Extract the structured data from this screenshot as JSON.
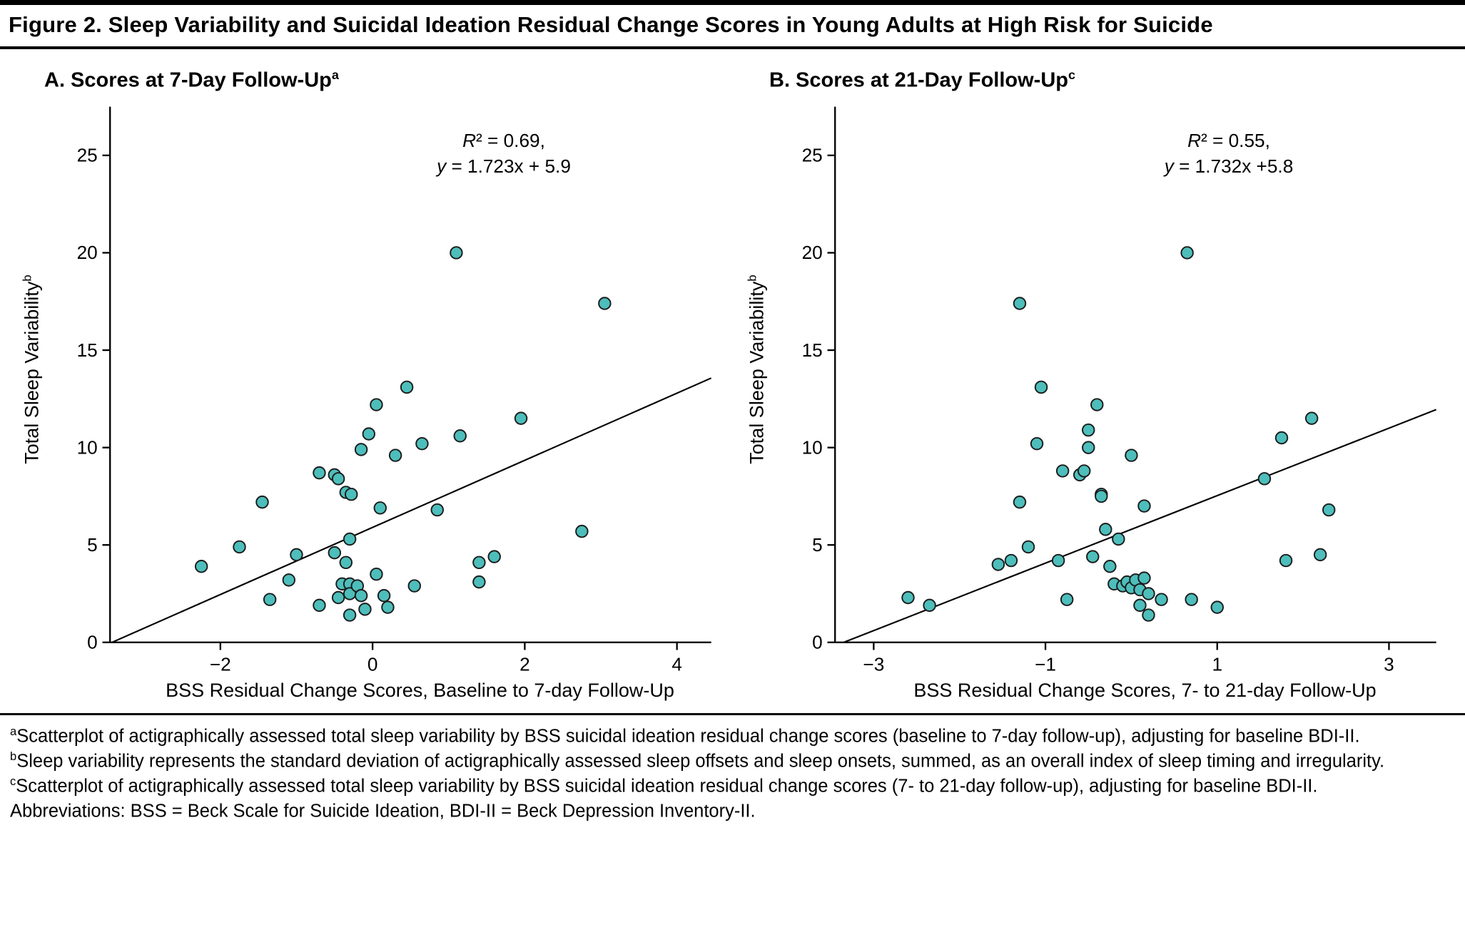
{
  "figure": {
    "title": "Figure 2. Sleep Variability and Suicidal Ideation Residual Change Scores in Young Adults at High Risk for Suicide"
  },
  "chart_data": [
    {
      "type": "scatter",
      "title": "A. Scores at 7-Day Follow-Up",
      "title_sup": "a",
      "xlabel": "BSS Residual Change Scores, Baseline to 7-day Follow-Up",
      "ylabel": "Total Sleep Variability",
      "ylabel_sup": "b",
      "xlim": [
        -3.45,
        4.45
      ],
      "ylim": [
        0,
        27.5
      ],
      "xticks": [
        -2,
        0,
        2,
        4
      ],
      "yticks": [
        0,
        5,
        10,
        15,
        20,
        25
      ],
      "grid": false,
      "legend": "none",
      "annotation_lines": [
        "R² = 0.69,",
        "y = 1.723x + 5.9"
      ],
      "regression": {
        "slope": 1.723,
        "intercept": 5.9
      },
      "point_color": "#4DBEBB",
      "point_stroke": "#1c1c1c",
      "line_color": "#000000",
      "points": [
        [
          -2.25,
          3.9
        ],
        [
          -1.75,
          4.9
        ],
        [
          -1.45,
          7.2
        ],
        [
          -1.35,
          2.2
        ],
        [
          -1.1,
          3.2
        ],
        [
          -1.0,
          4.5
        ],
        [
          -0.7,
          8.7
        ],
        [
          -0.7,
          1.9
        ],
        [
          -0.5,
          8.6
        ],
        [
          -0.45,
          8.4
        ],
        [
          -0.5,
          4.6
        ],
        [
          -0.45,
          2.3
        ],
        [
          -0.4,
          3.0
        ],
        [
          -0.35,
          7.7
        ],
        [
          -0.28,
          7.6
        ],
        [
          -0.3,
          5.3
        ],
        [
          -0.35,
          4.1
        ],
        [
          -0.3,
          3.0
        ],
        [
          -0.3,
          2.5
        ],
        [
          -0.3,
          1.4
        ],
        [
          -0.2,
          2.9
        ],
        [
          -0.15,
          2.4
        ],
        [
          -0.15,
          9.9
        ],
        [
          -0.1,
          1.7
        ],
        [
          -0.05,
          10.7
        ],
        [
          0.05,
          12.2
        ],
        [
          0.1,
          6.9
        ],
        [
          0.05,
          3.5
        ],
        [
          0.15,
          2.4
        ],
        [
          0.2,
          1.8
        ],
        [
          0.3,
          9.6
        ],
        [
          0.45,
          13.1
        ],
        [
          0.55,
          2.9
        ],
        [
          0.65,
          10.2
        ],
        [
          0.85,
          6.8
        ],
        [
          1.1,
          20.0
        ],
        [
          1.15,
          10.6
        ],
        [
          1.4,
          4.1
        ],
        [
          1.4,
          3.1
        ],
        [
          1.6,
          4.4
        ],
        [
          1.95,
          11.5
        ],
        [
          2.75,
          5.7
        ],
        [
          3.05,
          17.4
        ]
      ]
    },
    {
      "type": "scatter",
      "title": "B. Scores at 21-Day Follow-Up",
      "title_sup": "c",
      "xlabel": "BSS Residual Change Scores, 7- to 21-day Follow-Up",
      "ylabel": "Total Sleep Variability",
      "ylabel_sup": "b",
      "xlim": [
        -3.45,
        3.55
      ],
      "ylim": [
        0,
        27.5
      ],
      "xticks": [
        -3,
        -1,
        1,
        3
      ],
      "yticks": [
        0,
        5,
        10,
        15,
        20,
        25
      ],
      "grid": false,
      "legend": "none",
      "annotation_lines": [
        "R² = 0.55,",
        "y = 1.732x +5.8"
      ],
      "regression": {
        "slope": 1.732,
        "intercept": 5.8
      },
      "point_color": "#4DBEBB",
      "point_stroke": "#1c1c1c",
      "line_color": "#000000",
      "points": [
        [
          -2.6,
          2.3
        ],
        [
          -2.35,
          1.9
        ],
        [
          -1.55,
          4.0
        ],
        [
          -1.4,
          4.2
        ],
        [
          -1.3,
          17.4
        ],
        [
          -1.3,
          7.2
        ],
        [
          -1.2,
          4.9
        ],
        [
          -1.05,
          13.1
        ],
        [
          -1.1,
          10.2
        ],
        [
          -0.85,
          4.2
        ],
        [
          -0.8,
          8.8
        ],
        [
          -0.75,
          2.2
        ],
        [
          -0.6,
          8.6
        ],
        [
          -0.55,
          8.8
        ],
        [
          -0.5,
          10.9
        ],
        [
          -0.5,
          10.0
        ],
        [
          -0.45,
          4.4
        ],
        [
          -0.4,
          12.2
        ],
        [
          -0.35,
          7.6
        ],
        [
          -0.35,
          7.5
        ],
        [
          -0.3,
          5.8
        ],
        [
          -0.25,
          3.9
        ],
        [
          -0.2,
          3.0
        ],
        [
          -0.15,
          5.3
        ],
        [
          -0.1,
          2.9
        ],
        [
          -0.05,
          3.1
        ],
        [
          0.0,
          9.6
        ],
        [
          0.0,
          2.8
        ],
        [
          0.05,
          3.2
        ],
        [
          0.1,
          2.7
        ],
        [
          0.1,
          1.9
        ],
        [
          0.15,
          7.0
        ],
        [
          0.15,
          3.3
        ],
        [
          0.2,
          2.5
        ],
        [
          0.2,
          1.4
        ],
        [
          0.35,
          2.2
        ],
        [
          0.65,
          20.0
        ],
        [
          0.7,
          2.2
        ],
        [
          1.0,
          1.8
        ],
        [
          1.55,
          8.4
        ],
        [
          1.75,
          10.5
        ],
        [
          1.8,
          4.2
        ],
        [
          2.1,
          11.5
        ],
        [
          2.2,
          4.5
        ],
        [
          2.3,
          6.8
        ]
      ]
    }
  ],
  "footnotes": [
    {
      "sup": "a",
      "text": "Scatterplot of actigraphically assessed total sleep variability by BSS suicidal ideation residual change scores (baseline to 7-day follow-up), adjusting for baseline BDI-II."
    },
    {
      "sup": "b",
      "text": "Sleep variability represents the standard deviation of actigraphically assessed sleep offsets and sleep onsets, summed, as an overall index of sleep timing and irregularity."
    },
    {
      "sup": "c",
      "text": "Scatterplot of actigraphically assessed total sleep variability by BSS suicidal ideation residual change scores (7- to 21-day follow-up), adjusting for baseline BDI-II."
    },
    {
      "sup": "",
      "text": "Abbreviations: BSS = Beck Scale for Suicide Ideation, BDI-II = Beck Depression Inventory-II."
    }
  ]
}
